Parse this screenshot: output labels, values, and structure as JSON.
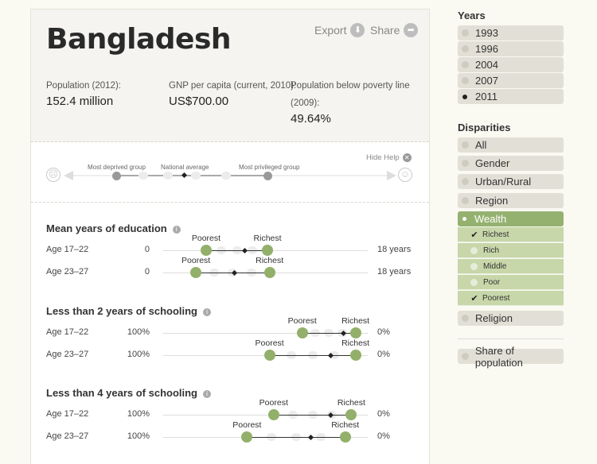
{
  "header": {
    "title": "Bangladesh",
    "export_label": "Export",
    "share_label": "Share"
  },
  "stats": [
    {
      "label": "Population (2012):",
      "value": "152.4 million"
    },
    {
      "label": "GNP per capita (current, 2010):",
      "value": "US$700.00"
    },
    {
      "label_line1": "Population below poverty line",
      "label_line2": "(2009):",
      "value": "49.64%"
    }
  ],
  "help": {
    "most_deprived": "Most deprived group",
    "national_average": "National average",
    "most_privileged": "Most privileged group",
    "hide_help": "Hide Help"
  },
  "indicators": [
    {
      "title": "Mean years of education",
      "min_label": "0",
      "max_label": "18 years",
      "rows": [
        {
          "label": "Age 17–22",
          "min_text": "0",
          "max_text": "18 years",
          "poorest_label": "Poorest",
          "richest_label": "Richest",
          "poorest": 0.21,
          "average": 0.4,
          "richest": 0.51
        },
        {
          "label": "Age 23–27",
          "min_text": "0",
          "max_text": "18 years",
          "poorest_label": "Poorest",
          "richest_label": "Richest",
          "poorest": 0.16,
          "average": 0.35,
          "richest": 0.52
        }
      ]
    },
    {
      "title": "Less than 2 years of schooling",
      "rows": [
        {
          "label": "Age 17–22",
          "min_text": "100%",
          "max_text": "0%",
          "poorest_label": "Poorest",
          "richest_label": "Richest",
          "poorest": 0.68,
          "average": 0.88,
          "richest": 0.94
        },
        {
          "label": "Age 23–27",
          "min_text": "100%",
          "max_text": "0%",
          "poorest_label": "Poorest",
          "richest_label": "Richest",
          "poorest": 0.52,
          "average": 0.82,
          "richest": 0.94
        }
      ]
    },
    {
      "title": "Less than 4 years of schooling",
      "rows": [
        {
          "label": "Age 17–22",
          "min_text": "100%",
          "max_text": "0%",
          "poorest_label": "Poorest",
          "richest_label": "Richest",
          "poorest": 0.54,
          "average": 0.82,
          "richest": 0.92
        },
        {
          "label": "Age 23–27",
          "min_text": "100%",
          "max_text": "0%",
          "poorest_label": "Poorest",
          "richest_label": "Richest",
          "poorest": 0.41,
          "average": 0.72,
          "richest": 0.89
        }
      ]
    }
  ],
  "years": {
    "title": "Years",
    "items": [
      "1993",
      "1996",
      "2004",
      "2007",
      "2011"
    ],
    "selected": "2011"
  },
  "disparities": {
    "title": "Disparities",
    "items": [
      "All",
      "Gender",
      "Urban/Rural",
      "Region",
      "Wealth"
    ],
    "selected": "Wealth",
    "wealth_subitems": [
      {
        "label": "Richest",
        "checked": true
      },
      {
        "label": "Rich",
        "checked": false
      },
      {
        "label": "Middle",
        "checked": false
      },
      {
        "label": "Poor",
        "checked": false
      },
      {
        "label": "Poorest",
        "checked": true
      }
    ],
    "after": [
      "Religion"
    ],
    "share_label": "Share of population"
  },
  "colors": {
    "accent_green": "#93b06b",
    "panel_grey": "#e2dfd6"
  }
}
